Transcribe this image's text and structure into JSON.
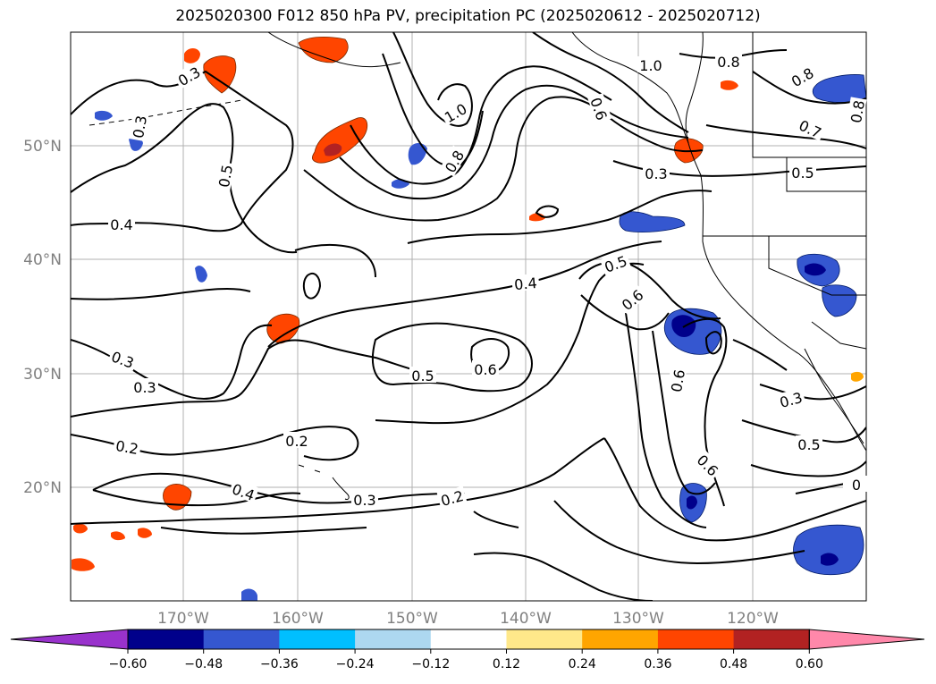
{
  "title": "2025020300 F012 850 hPa PV, precipitation PC (2025020612 - 2025020712)",
  "map": {
    "lon_labels": [
      "170°W",
      "160°W",
      "150°W",
      "140°W",
      "130°W",
      "120°W"
    ],
    "lat_labels": [
      "50°N",
      "40°N",
      "30°N",
      "20°N"
    ],
    "contour_labels": [
      "0.3",
      "0.3",
      "0.5",
      "0.4",
      "0.3",
      "0.2",
      "0.2",
      "0.4",
      "0.3",
      "0.2",
      "0.4",
      "0.5",
      "0.6",
      "0.5",
      "0.6",
      "0.6",
      "0.6",
      "0.8",
      "1.0",
      "1.0",
      "0.8",
      "0.6",
      "0.3",
      "0.3",
      "0.8",
      "0.7",
      "0.5",
      "0.8",
      "0.3",
      "0.5",
      "0"
    ],
    "grid": true,
    "coastlines": true
  },
  "colorbar": {
    "tick_labels": [
      "−0.60",
      "−0.48",
      "−0.36",
      "−0.24",
      "−0.12",
      "0.12",
      "0.24",
      "0.36",
      "0.48",
      "0.60"
    ],
    "colors": [
      "#9932cc",
      "#00008b",
      "#3557d0",
      "#00bfff",
      "#add8f0",
      "#ffffff",
      "#ffe88a",
      "#ffa500",
      "#ff4500",
      "#b22222",
      "#ff88aa"
    ],
    "extend": "both"
  }
}
